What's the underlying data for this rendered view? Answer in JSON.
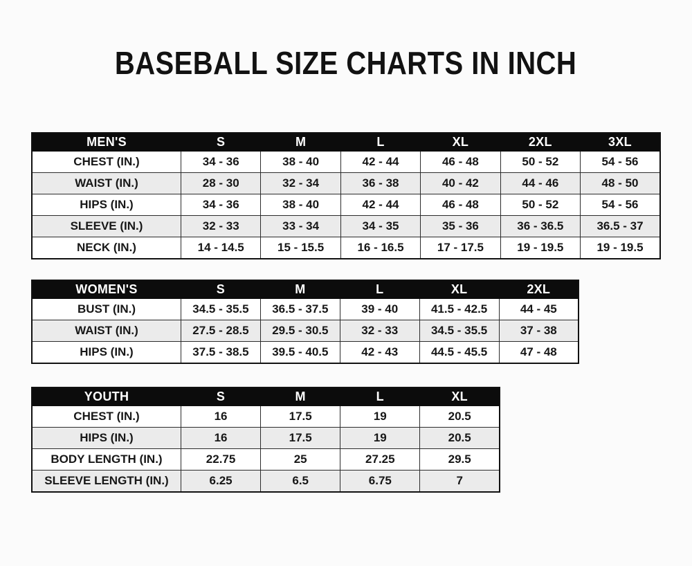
{
  "page": {
    "title": "BASEBALL SIZE CHARTS IN INCH"
  },
  "tables": [
    {
      "id": "mens",
      "header": [
        "MEN'S",
        "S",
        "M",
        "L",
        "XL",
        "2XL",
        "3XL"
      ],
      "rows": [
        {
          "label": "CHEST (IN.)",
          "values": [
            "34 - 36",
            "38 - 40",
            "42 - 44",
            "46 - 48",
            "50 - 52",
            "54 - 56"
          ]
        },
        {
          "label": "WAIST (IN.)",
          "values": [
            "28 - 30",
            "32 - 34",
            "36 - 38",
            "40 - 42",
            "44 - 46",
            "48 - 50"
          ]
        },
        {
          "label": "HIPS (IN.)",
          "values": [
            "34 - 36",
            "38 - 40",
            "42 - 44",
            "46 - 48",
            "50 - 52",
            "54 - 56"
          ]
        },
        {
          "label": "SLEEVE (IN.)",
          "values": [
            "32 - 33",
            "33 - 34",
            "34 - 35",
            "35 - 36",
            "36 - 36.5",
            "36.5 - 37"
          ]
        },
        {
          "label": "NECK (IN.)",
          "values": [
            "14 - 14.5",
            "15 - 15.5",
            "16 - 16.5",
            "17 - 17.5",
            "19 - 19.5",
            "19 - 19.5"
          ]
        }
      ]
    },
    {
      "id": "womens",
      "header": [
        "WOMEN'S",
        "S",
        "M",
        "L",
        "XL",
        "2XL"
      ],
      "rows": [
        {
          "label": "BUST (IN.)",
          "values": [
            "34.5 - 35.5",
            "36.5 - 37.5",
            "39 - 40",
            "41.5 - 42.5",
            "44 - 45"
          ]
        },
        {
          "label": "WAIST (IN.)",
          "values": [
            "27.5 - 28.5",
            "29.5 - 30.5",
            "32 - 33",
            "34.5 - 35.5",
            "37 - 38"
          ]
        },
        {
          "label": "HIPS (IN.)",
          "values": [
            "37.5 - 38.5",
            "39.5 - 40.5",
            "42 - 43",
            "44.5 - 45.5",
            "47 - 48"
          ]
        }
      ]
    },
    {
      "id": "youth",
      "header": [
        "YOUTH",
        "S",
        "M",
        "L",
        "XL"
      ],
      "rows": [
        {
          "label": "CHEST (IN.)",
          "values": [
            "16",
            "17.5",
            "19",
            "20.5"
          ]
        },
        {
          "label": "HIPS (IN.)",
          "values": [
            "16",
            "17.5",
            "19",
            "20.5"
          ]
        },
        {
          "label": "BODY LENGTH (IN.)",
          "values": [
            "22.75",
            "25",
            "27.25",
            "29.5"
          ]
        },
        {
          "label": "SLEEVE LENGTH (IN.)",
          "values": [
            "6.25",
            "6.5",
            "6.75",
            "7"
          ]
        }
      ]
    }
  ],
  "colors": {
    "background": "#fbfbfb",
    "header_bar": "#0c0c0c",
    "header_text": "#ffffff",
    "stripe_row": "#ebebeb",
    "text": "#171717",
    "border": "#2b2b2b"
  }
}
